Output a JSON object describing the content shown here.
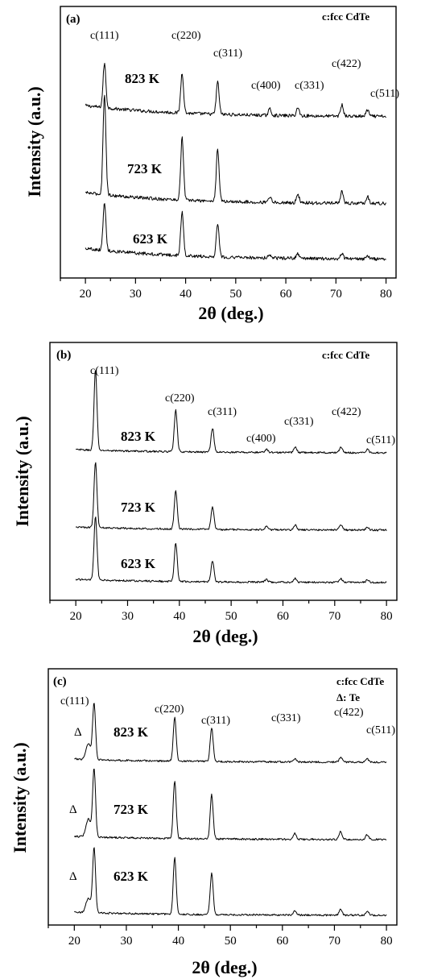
{
  "chart_data": [
    {
      "type": "line",
      "panel_label": "(a)",
      "xlabel": "2θ (deg.)",
      "ylabel": "Intensity (a.u.)",
      "xlim": [
        15,
        82
      ],
      "xticks": [
        20,
        30,
        40,
        50,
        60,
        70,
        80
      ],
      "legend_lines": [
        "c:fcc CdTe"
      ],
      "peak_labels": [
        "c(111)",
        "c(220)",
        "c(311)",
        "c(400)",
        "c(331)",
        "c(422)",
        "c(511)"
      ],
      "peaks_2theta": [
        23.8,
        39.3,
        46.4,
        56.8,
        62.4,
        71.2,
        76.3
      ],
      "series": [
        {
          "name": "823 K",
          "peak_heights": [
            55,
            50,
            40,
            8,
            10,
            14,
            8
          ],
          "te_shoulder": 0
        },
        {
          "name": "723 K",
          "peak_heights": [
            100,
            62,
            52,
            6,
            8,
            12,
            7
          ],
          "te_shoulder": 0
        },
        {
          "name": "623 K",
          "peak_heights": [
            60,
            55,
            42,
            4,
            6,
            6,
            4
          ],
          "te_shoulder": 0
        }
      ]
    },
    {
      "type": "line",
      "panel_label": "(b)",
      "xlabel": "2θ (deg.)",
      "ylabel": "Intensity (a.u.)",
      "xlim": [
        15,
        82
      ],
      "xticks": [
        20,
        30,
        40,
        50,
        60,
        70,
        80
      ],
      "legend_lines": [
        "c:fcc CdTe"
      ],
      "peak_labels": [
        "c(111)",
        "c(220)",
        "c(311)",
        "c(400)",
        "c(331)",
        "c(422)",
        "c(511)"
      ],
      "peaks_2theta": [
        23.8,
        39.3,
        46.4,
        56.8,
        62.4,
        71.2,
        76.3
      ],
      "series": [
        {
          "name": "823 K",
          "peak_heights": [
            100,
            52,
            30,
            4,
            7,
            7,
            4
          ],
          "te_shoulder": 0
        },
        {
          "name": "723 K",
          "peak_heights": [
            82,
            48,
            28,
            4,
            6,
            7,
            4
          ],
          "te_shoulder": 0
        },
        {
          "name": "623 K",
          "peak_heights": [
            80,
            48,
            26,
            3,
            5,
            5,
            3
          ],
          "te_shoulder": 0
        }
      ]
    },
    {
      "type": "line",
      "panel_label": "(c)",
      "xlabel": "2θ (deg.)",
      "ylabel": "Intensity (a.u.)",
      "xlim": [
        15,
        82
      ],
      "xticks": [
        20,
        30,
        40,
        50,
        60,
        70,
        80
      ],
      "legend_lines": [
        "c:fcc CdTe",
        "Δ: Te"
      ],
      "peak_labels": [
        "c(111)",
        "c(220)",
        "c(311)",
        "c(331)",
        "c(422)",
        "c(511)"
      ],
      "peaks_2theta": [
        23.8,
        39.3,
        46.4,
        62.4,
        71.2,
        76.3
      ],
      "te_marker": "Δ",
      "series": [
        {
          "name": "823 K",
          "peak_heights": [
            70,
            55,
            42,
            4,
            6,
            4
          ],
          "te_shoulder": 20
        },
        {
          "name": "723 K",
          "peak_heights": [
            85,
            72,
            55,
            8,
            10,
            6
          ],
          "te_shoulder": 22
        },
        {
          "name": "623 K",
          "peak_heights": [
            80,
            70,
            52,
            5,
            8,
            5
          ],
          "te_shoulder": 18
        }
      ]
    }
  ]
}
